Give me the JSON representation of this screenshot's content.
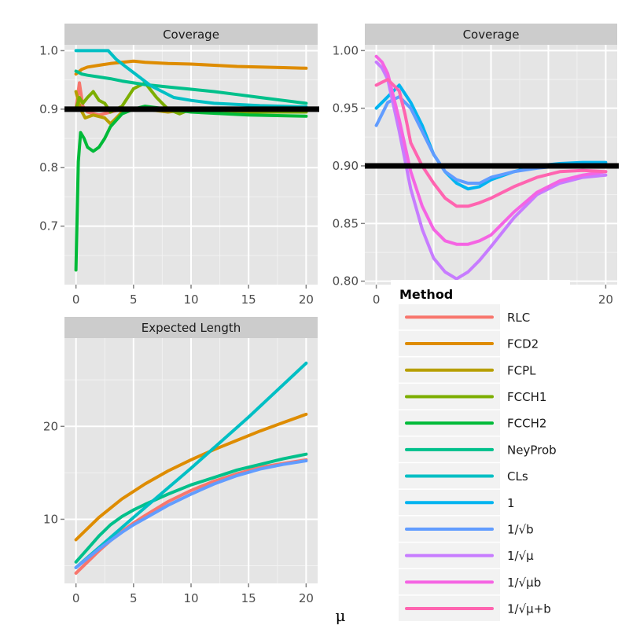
{
  "chart_data": [
    {
      "type": "line",
      "id": "p1",
      "title": "Coverage",
      "xlabel": "",
      "ylabel": "",
      "xlim": [
        -1,
        21
      ],
      "ylim": [
        0.6,
        1.01
      ],
      "xticks": [
        0,
        5,
        10,
        15,
        20
      ],
      "yticks": [
        0.7,
        0.8,
        0.9,
        1.0
      ],
      "ytick_labels": [
        "0.7",
        "0.8",
        "0.9",
        "1.0"
      ],
      "reference_line": 0.9,
      "series": [
        {
          "name": "RLC",
          "x": [
            0,
            0.3,
            0.6,
            1,
            2,
            4,
            6,
            8,
            10,
            12,
            14,
            16,
            18,
            20
          ],
          "y": [
            0.9,
            0.945,
            0.905,
            0.895,
            0.89,
            0.9,
            0.9,
            0.898,
            0.9,
            0.9,
            0.899,
            0.9,
            0.9,
            0.9
          ]
        },
        {
          "name": "FCD2",
          "x": [
            0,
            0.5,
            1,
            2,
            3,
            4,
            5,
            6,
            8,
            10,
            12,
            14,
            16,
            18,
            20
          ],
          "y": [
            0.96,
            0.968,
            0.972,
            0.975,
            0.978,
            0.98,
            0.982,
            0.98,
            0.978,
            0.977,
            0.975,
            0.973,
            0.972,
            0.971,
            0.97
          ]
        },
        {
          "name": "FCPL",
          "x": [
            0,
            0.4,
            0.8,
            1.5,
            2.5,
            3,
            3.5,
            4,
            5,
            6,
            8,
            10,
            14,
            20
          ],
          "y": [
            0.93,
            0.9,
            0.885,
            0.89,
            0.885,
            0.875,
            0.885,
            0.895,
            0.9,
            0.9,
            0.895,
            0.9,
            0.897,
            0.895
          ]
        },
        {
          "name": "FCCH1",
          "x": [
            0,
            0.3,
            0.6,
            1,
            1.5,
            2,
            2.5,
            3,
            4,
            5,
            6,
            7,
            8,
            9,
            10,
            12,
            15,
            20
          ],
          "y": [
            0.9,
            0.92,
            0.91,
            0.92,
            0.93,
            0.915,
            0.91,
            0.895,
            0.905,
            0.935,
            0.945,
            0.92,
            0.9,
            0.892,
            0.9,
            0.898,
            0.895,
            0.895
          ]
        },
        {
          "name": "FCCH2",
          "x": [
            0,
            0.2,
            0.4,
            0.7,
            1,
            1.5,
            2,
            2.5,
            3,
            4,
            5,
            6,
            8,
            10,
            15,
            20
          ],
          "y": [
            0.625,
            0.81,
            0.86,
            0.85,
            0.835,
            0.828,
            0.835,
            0.85,
            0.87,
            0.892,
            0.9,
            0.905,
            0.9,
            0.895,
            0.89,
            0.888
          ]
        },
        {
          "name": "NeyProb",
          "x": [
            0,
            0.5,
            1,
            2,
            3,
            4,
            5,
            6,
            8,
            10,
            12,
            14,
            16,
            18,
            20
          ],
          "y": [
            0.965,
            0.96,
            0.958,
            0.955,
            0.952,
            0.948,
            0.945,
            0.942,
            0.938,
            0.934,
            0.93,
            0.925,
            0.92,
            0.915,
            0.91
          ]
        },
        {
          "name": "CLs",
          "x": [
            0,
            1,
            2,
            2.8,
            3.5,
            4.5,
            5.5,
            6.5,
            7.5,
            8.5,
            10,
            12,
            14,
            16,
            18,
            20
          ],
          "y": [
            1.0,
            1.0,
            1.0,
            1.0,
            0.985,
            0.97,
            0.955,
            0.94,
            0.93,
            0.92,
            0.915,
            0.91,
            0.908,
            0.906,
            0.905,
            0.904
          ]
        }
      ]
    },
    {
      "type": "line",
      "id": "p2",
      "title": "Coverage",
      "xlabel": "",
      "ylabel": "",
      "xlim": [
        -1,
        21
      ],
      "ylim": [
        0.797,
        1.005
      ],
      "xticks": [
        0,
        20
      ],
      "yticks": [
        0.8,
        0.85,
        0.9,
        0.95,
        1.0
      ],
      "ytick_labels": [
        "0.80",
        "0.85",
        "0.90",
        "0.95",
        "1.00"
      ],
      "reference_line": 0.9,
      "series": [
        {
          "name": "1",
          "x": [
            0,
            1,
            2,
            3,
            4,
            5,
            6,
            7,
            8,
            9,
            10,
            12,
            14,
            16,
            18,
            20
          ],
          "y": [
            0.95,
            0.96,
            0.97,
            0.955,
            0.935,
            0.91,
            0.895,
            0.885,
            0.88,
            0.882,
            0.888,
            0.895,
            0.9,
            0.902,
            0.903,
            0.903
          ]
        },
        {
          "name": "1/√b",
          "x": [
            0,
            1,
            2,
            3,
            4,
            5,
            6,
            7,
            8,
            9,
            10,
            12,
            14,
            16,
            18,
            20
          ],
          "y": [
            0.935,
            0.955,
            0.96,
            0.95,
            0.93,
            0.91,
            0.895,
            0.888,
            0.885,
            0.885,
            0.89,
            0.895,
            0.898,
            0.9,
            0.9,
            0.9
          ]
        },
        {
          "name": "1/√μ",
          "x": [
            0,
            0.5,
            1,
            2,
            3,
            4,
            5,
            6,
            7,
            8,
            9,
            10,
            12,
            14,
            16,
            18,
            20
          ],
          "y": [
            0.99,
            0.985,
            0.975,
            0.93,
            0.88,
            0.845,
            0.82,
            0.808,
            0.802,
            0.808,
            0.818,
            0.83,
            0.855,
            0.875,
            0.885,
            0.89,
            0.892
          ]
        },
        {
          "name": "1/√μb",
          "x": [
            0,
            0.5,
            1,
            2,
            3,
            4,
            5,
            6,
            7,
            8,
            9,
            10,
            12,
            14,
            16,
            18,
            20
          ],
          "y": [
            0.995,
            0.99,
            0.98,
            0.94,
            0.895,
            0.865,
            0.845,
            0.835,
            0.832,
            0.832,
            0.835,
            0.84,
            0.86,
            0.877,
            0.887,
            0.892,
            0.895
          ]
        },
        {
          "name": "1/√(μ+b)",
          "x": [
            0,
            1,
            2,
            2.5,
            3,
            4,
            5,
            6,
            7,
            8,
            9,
            10,
            12,
            14,
            16,
            18,
            20
          ],
          "y": [
            0.97,
            0.975,
            0.965,
            0.945,
            0.92,
            0.9,
            0.885,
            0.872,
            0.865,
            0.865,
            0.868,
            0.872,
            0.882,
            0.89,
            0.895,
            0.896,
            0.895
          ]
        }
      ]
    },
    {
      "type": "line",
      "id": "p3",
      "title": "Expected Length",
      "xlabel": "μ",
      "ylabel": "",
      "xlim": [
        -1,
        21
      ],
      "ylim": [
        3.1,
        29.5
      ],
      "xticks": [
        0,
        5,
        10,
        15,
        20
      ],
      "yticks": [
        10,
        20
      ],
      "ytick_labels": [
        "10",
        "20"
      ],
      "series": [
        {
          "name": "RLC",
          "x": [
            0,
            1,
            2,
            3,
            4,
            5,
            6,
            8,
            10,
            12,
            14,
            16,
            18,
            20
          ],
          "y": [
            4.2,
            5.4,
            6.6,
            7.7,
            8.7,
            9.6,
            10.4,
            11.9,
            13.1,
            14.1,
            14.9,
            15.6,
            16.0,
            16.4
          ]
        },
        {
          "name": "FCD2",
          "x": [
            0,
            2,
            4,
            6,
            8,
            10,
            12,
            14,
            16,
            18,
            20
          ],
          "y": [
            7.8,
            10.2,
            12.2,
            13.8,
            15.2,
            16.4,
            17.5,
            18.5,
            19.5,
            20.4,
            21.3
          ]
        },
        {
          "name": "NeyProb",
          "x": [
            0,
            1,
            2,
            3,
            4,
            5,
            6,
            8,
            10,
            12,
            14,
            16,
            18,
            20
          ],
          "y": [
            5.4,
            6.8,
            8.2,
            9.4,
            10.3,
            11.0,
            11.6,
            12.7,
            13.7,
            14.5,
            15.3,
            15.9,
            16.5,
            17.0
          ]
        },
        {
          "name": "CLs",
          "x": [
            0,
            5,
            10,
            15,
            20
          ],
          "y": [
            4.8,
            10.2,
            15.5,
            21.0,
            26.8
          ]
        },
        {
          "name": "1/√b",
          "x": [
            0,
            1,
            2,
            3,
            4,
            5,
            6,
            8,
            10,
            12,
            14,
            16,
            18,
            20
          ],
          "y": [
            4.8,
            5.8,
            6.8,
            7.7,
            8.6,
            9.4,
            10.1,
            11.5,
            12.7,
            13.8,
            14.7,
            15.4,
            15.9,
            16.3
          ]
        }
      ]
    }
  ],
  "legend": {
    "title": "Method",
    "position": "right",
    "items": [
      {
        "label": "RLC",
        "color": "#F8766D"
      },
      {
        "label": "FCD2",
        "color": "#DE8C00"
      },
      {
        "label": "FCPL",
        "color": "#B79F00"
      },
      {
        "label": "FCCH1",
        "color": "#7CAE00"
      },
      {
        "label": "FCCH2",
        "color": "#00BA38"
      },
      {
        "label": "NeyProb",
        "color": "#00C08B"
      },
      {
        "label": "CLs",
        "color": "#00BFC4"
      },
      {
        "label": "1",
        "color": "#00B4F0"
      },
      {
        "label": "1/√b",
        "color": "#619CFF"
      },
      {
        "label": "1/√μ",
        "color": "#C77CFF"
      },
      {
        "label": "1/√μb",
        "color": "#F564E3"
      },
      {
        "label": "1/√μ+b",
        "color": "#FF64B0"
      }
    ]
  },
  "colors": {
    "panel_bg": "#E5E5E5",
    "strip_bg": "#CCCCCC",
    "grid_major": "#FFFFFF",
    "grid_minor": "#F2F2F2",
    "reference": "#000000"
  }
}
